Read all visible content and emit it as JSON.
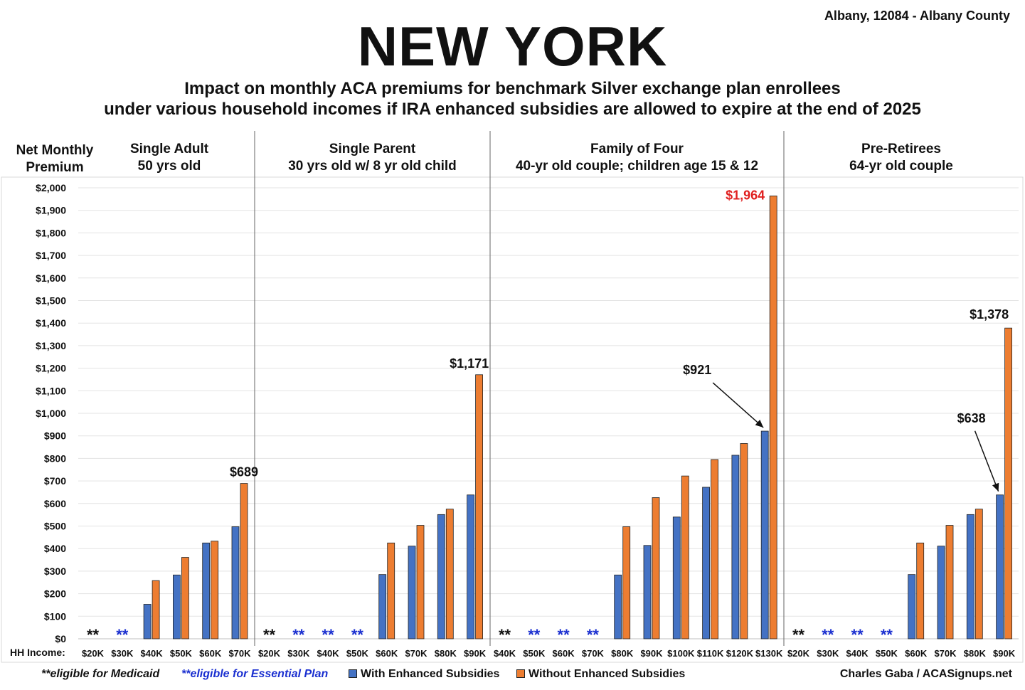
{
  "header": {
    "title": "NEW YORK",
    "location": "Albany, 12084 - Albany County",
    "subtitle_line1": "Impact on monthly ACA premiums for benchmark Silver exchange plan enrollees",
    "subtitle_line2": "under various household incomes if IRA enhanced subsidies are allowed to expire at the end of 2025"
  },
  "legend": {
    "medicaid_note": "**eligible for Medicaid",
    "essential_note": "**eligible for Essential Plan",
    "with_label": "With Enhanced Subsidies",
    "without_label": "Without Enhanced Subsidies"
  },
  "credit": "Charles Gaba / ACASignups.net",
  "colors": {
    "with": "#4472c4",
    "without": "#ed7d31",
    "medicaid_marker": "#111111",
    "essential_marker": "#1a2fd0",
    "highlight_label": "#e02020"
  },
  "chart_data": {
    "type": "bar",
    "ylabel": "Net Monthly Premium",
    "xlabel": "HH Income:",
    "ylim": [
      0,
      2000
    ],
    "y_ticks": [
      "$0",
      "$100",
      "$200",
      "$300",
      "$400",
      "$500",
      "$600",
      "$700",
      "$800",
      "$900",
      "$1,000",
      "$1,100",
      "$1,200",
      "$1,300",
      "$1,400",
      "$1,500",
      "$1,600",
      "$1,700",
      "$1,800",
      "$1,900",
      "$2,000"
    ],
    "grid": true,
    "legend_position": "bottom",
    "series_names": [
      "With Enhanced Subsidies",
      "Without Enhanced Subsidies"
    ],
    "panels": [
      {
        "title": "Single Adult",
        "subtitle": "50 yrs old",
        "categories": [
          "$20K",
          "$30K",
          "$40K",
          "$50K",
          "$60K",
          "$70K"
        ],
        "with": [
          null,
          null,
          153,
          283,
          425,
          497
        ],
        "without": [
          null,
          null,
          258,
          361,
          433,
          689
        ],
        "markers": [
          "medicaid",
          "essential",
          null,
          null,
          null,
          null
        ],
        "annotations": [
          {
            "text": "$689",
            "category": 5,
            "series": "without",
            "value": 689
          }
        ]
      },
      {
        "title": "Single Parent",
        "subtitle": "30 yrs old w/ 8 yr old child",
        "categories": [
          "$20K",
          "$30K",
          "$40K",
          "$50K",
          "$60K",
          "$70K",
          "$80K",
          "$90K"
        ],
        "with": [
          null,
          null,
          null,
          null,
          285,
          411,
          551,
          638
        ],
        "without": [
          null,
          null,
          null,
          null,
          425,
          503,
          575,
          1171
        ],
        "markers": [
          "medicaid",
          "essential",
          "essential",
          "essential",
          null,
          null,
          null,
          null
        ],
        "annotations": [
          {
            "text": "$1,171",
            "category": 7,
            "series": "without",
            "value": 1171
          }
        ]
      },
      {
        "title": "Family of Four",
        "subtitle": "40-yr old couple; children age 15 & 12",
        "categories": [
          "$40K",
          "$50K",
          "$60K",
          "$70K",
          "$80K",
          "$90K",
          "$100K",
          "$110K",
          "$120K",
          "$130K"
        ],
        "with": [
          null,
          null,
          null,
          null,
          283,
          414,
          540,
          672,
          814,
          921
        ],
        "without": [
          null,
          null,
          null,
          null,
          497,
          626,
          722,
          795,
          866,
          1964
        ],
        "markers": [
          "medicaid",
          "essential",
          "essential",
          "essential",
          null,
          null,
          null,
          null,
          null,
          null
        ],
        "annotations": [
          {
            "text": "$1,964",
            "category": 9,
            "series": "without",
            "value": 1964,
            "highlight": true
          },
          {
            "text": "$921",
            "category": 9,
            "series": "with",
            "value": 921,
            "arrow": true
          }
        ]
      },
      {
        "title": "Pre-Retirees",
        "subtitle": "64-yr old couple",
        "categories": [
          "$20K",
          "$30K",
          "$40K",
          "$50K",
          "$60K",
          "$70K",
          "$80K",
          "$90K"
        ],
        "with": [
          null,
          null,
          null,
          null,
          285,
          411,
          551,
          638
        ],
        "without": [
          null,
          null,
          null,
          null,
          425,
          503,
          575,
          1378
        ],
        "markers": [
          "medicaid",
          "essential",
          "essential",
          "essential",
          null,
          null,
          null,
          null
        ],
        "annotations": [
          {
            "text": "$1,378",
            "category": 7,
            "series": "without",
            "value": 1378
          },
          {
            "text": "$638",
            "category": 7,
            "series": "with",
            "value": 638,
            "arrow": true
          }
        ]
      }
    ]
  }
}
